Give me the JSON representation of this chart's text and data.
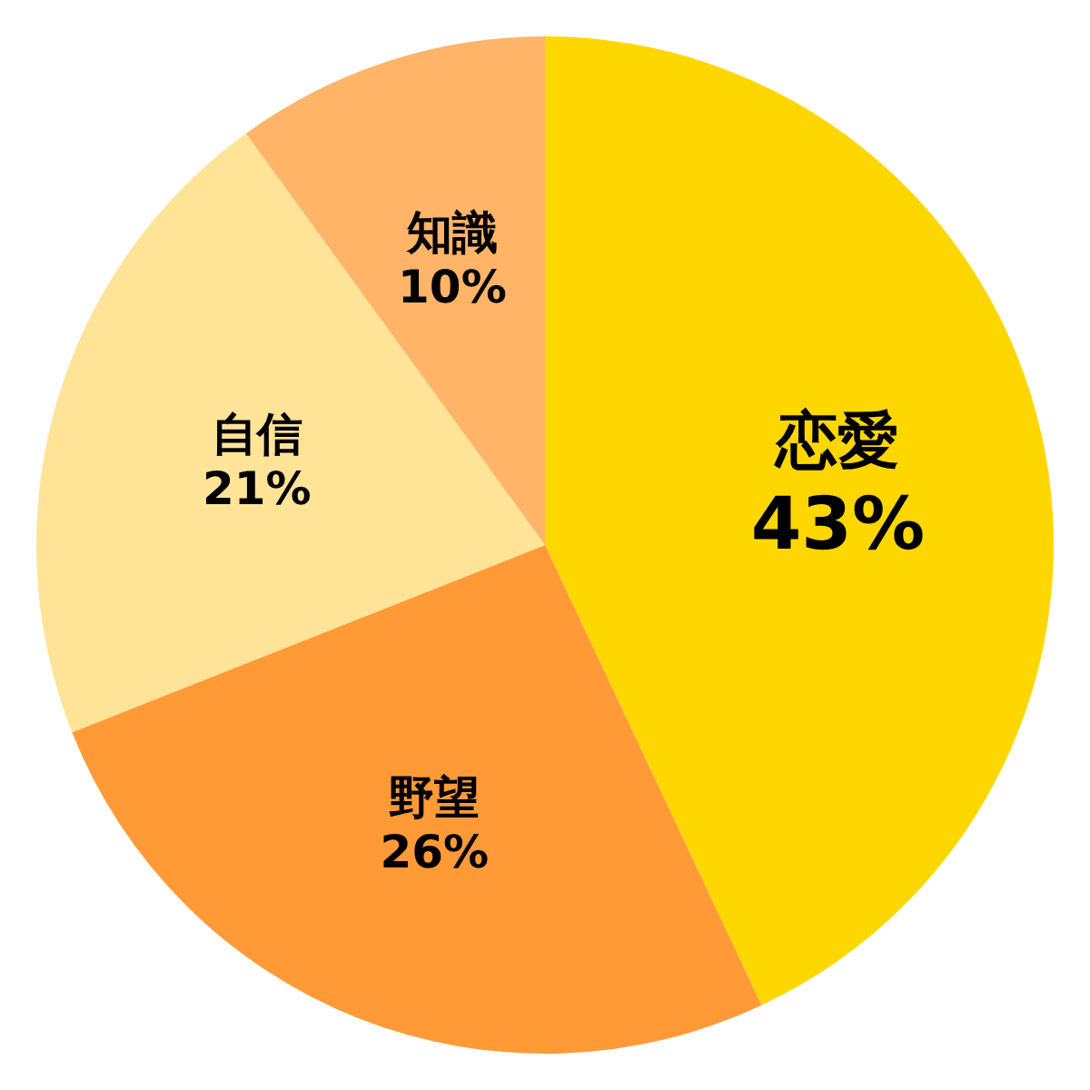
{
  "chart_data": {
    "type": "pie",
    "categories": [
      "恋愛",
      "野望",
      "自信",
      "知識"
    ],
    "values": [
      43,
      26,
      21,
      10
    ],
    "value_labels": [
      "43%",
      "26%",
      "21%",
      "10%"
    ],
    "colors": [
      "#ffd700",
      "#ff9a37",
      "#ffe396",
      "#ffb468"
    ]
  }
}
